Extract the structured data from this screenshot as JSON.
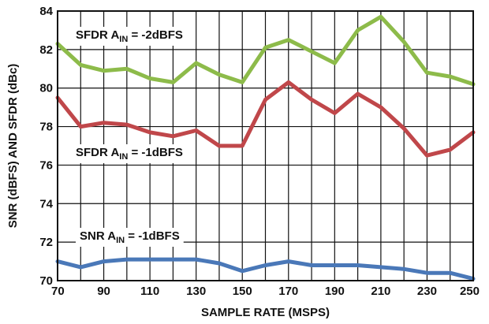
{
  "chart_data": {
    "type": "line",
    "xlabel": "SAMPLE RATE (MSPS)",
    "ylabel": "SNR (dBFS) AND SFDR (dBc)",
    "xlim": [
      70,
      250
    ],
    "ylim": [
      70,
      84
    ],
    "xticks": [
      70,
      90,
      110,
      130,
      150,
      170,
      190,
      210,
      230,
      250
    ],
    "yticks": [
      70,
      72,
      74,
      76,
      78,
      80,
      82,
      84
    ],
    "grid": true,
    "x": [
      70,
      80,
      90,
      100,
      110,
      120,
      130,
      140,
      150,
      160,
      170,
      180,
      190,
      200,
      210,
      220,
      230,
      240,
      250
    ],
    "series": [
      {
        "color": "#8dbb4a",
        "values": [
          82.3,
          81.2,
          80.9,
          81.0,
          80.5,
          80.3,
          81.3,
          80.7,
          80.3,
          82.1,
          82.5,
          81.9,
          81.3,
          83.0,
          83.7,
          82.4,
          80.8,
          80.6,
          80.2
        ]
      },
      {
        "color": "#c0474a",
        "values": [
          79.5,
          78.0,
          78.2,
          78.1,
          77.7,
          77.5,
          77.8,
          77.0,
          77.0,
          79.4,
          80.3,
          79.4,
          78.7,
          79.7,
          79.0,
          77.9,
          76.5,
          76.8,
          77.7
        ]
      },
      {
        "color": "#4a78b8",
        "values": [
          71.0,
          70.7,
          71.0,
          71.1,
          71.1,
          71.1,
          71.1,
          70.9,
          70.5,
          70.8,
          71.0,
          70.8,
          70.8,
          70.8,
          70.7,
          70.6,
          70.4,
          70.4,
          70.1
        ]
      }
    ],
    "annotations": [
      {
        "name": "sfdr-2",
        "main": "SFDR A",
        "sub": "IN",
        "rest": " = -2dBFS"
      },
      {
        "name": "sfdr-1",
        "main": "SFDR A",
        "sub": "IN",
        "rest": " = -1dBFS"
      },
      {
        "name": "snr-1",
        "main": "SNR A",
        "sub": "IN",
        "rest": " = -1dBFS"
      }
    ]
  }
}
